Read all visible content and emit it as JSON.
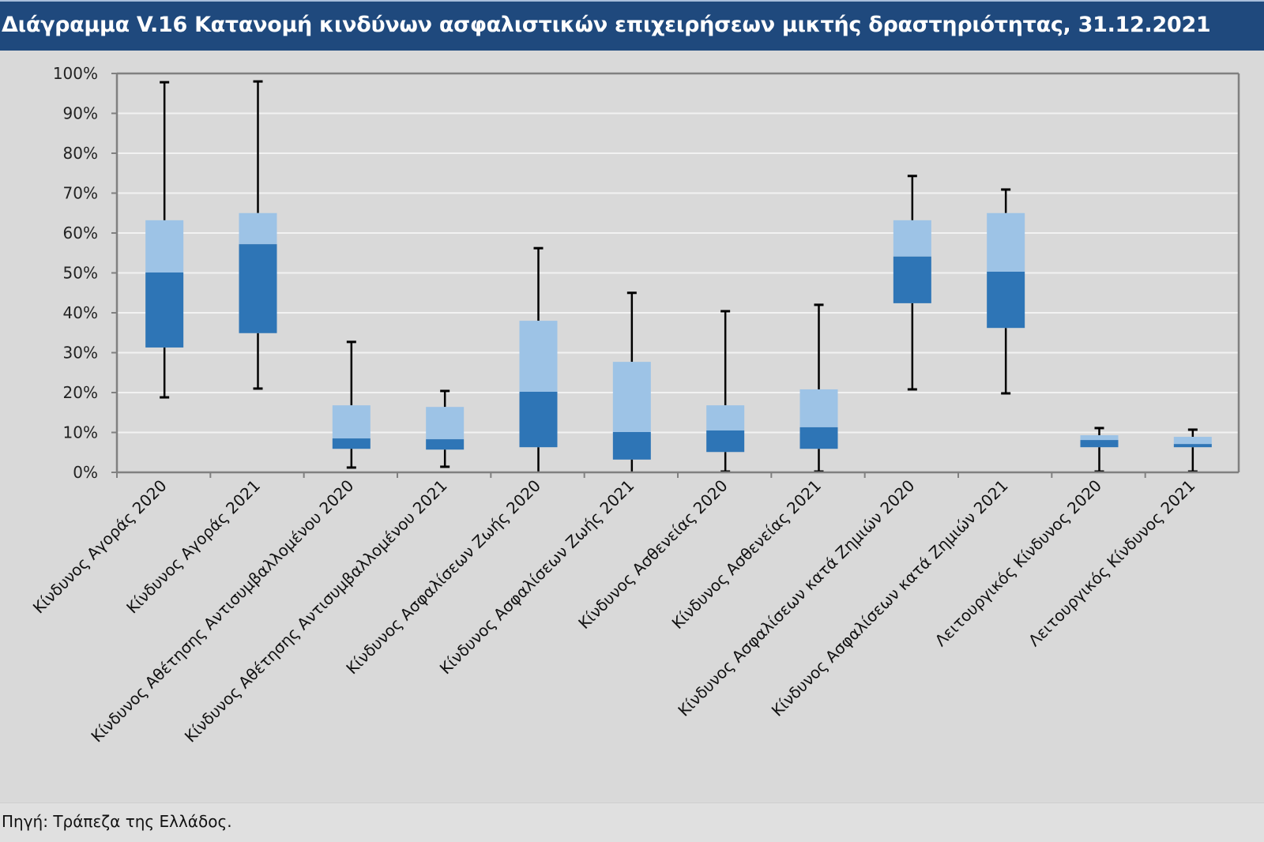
{
  "title": "Διάγραμμα V.16 Κατανομή κινδύνων ασφαλιστικών επιχειρήσεων μικτής δραστηριότητας, 31.12.2021",
  "source": "Πηγή: Τράπεζα της Ελλάδος.",
  "colors": {
    "title_bg": "#1f497d",
    "upper_box": "#9dc3e6",
    "lower_box": "#2e75b6",
    "whisker": "#000000",
    "gridline": "#f2f2f2",
    "axis": "#808080"
  },
  "chart_data": {
    "type": "boxplot",
    "title": "Διάγραμμα V.16 Κατανομή κινδύνων ασφαλιστικών επιχειρήσεων μικτής δραστηριότητας, 31.12.2021",
    "xlabel": "",
    "ylabel": "",
    "ylim": [
      0,
      100
    ],
    "y_unit": "%",
    "y_ticks": [
      "0%",
      "10%",
      "20%",
      "30%",
      "40%",
      "50%",
      "60%",
      "70%",
      "80%",
      "90%",
      "100%"
    ],
    "y_tick_values": [
      0,
      10,
      20,
      30,
      40,
      50,
      60,
      70,
      80,
      90,
      100
    ],
    "grid": true,
    "legend": "none",
    "categories": [
      "Κίνδυνος Αγοράς  2020",
      "Κίνδυνος Αγοράς 2021",
      "Κίνδυνος Αθέτησης Αντισυμβαλλομένου 2020",
      "Κίνδυνος Αθέτησης Αντισυμβαλλομένου 2021",
      "Κίνδυνος Ασφαλίσεων Ζωής 2020",
      "Κίνδυνος Ασφαλίσεων Ζωής 2021",
      "Κίνδυνος Ασθενείας 2020",
      "Κίνδυνος Ασθενείας 2021",
      "Κίνδυνος Ασφαλίσεων κατά Ζημιών 2020",
      "Κίνδυνος Ασφαλίσεων κατά Ζημιών 2021",
      "Λειτουργικός Κίνδυνος 2020",
      "Λειτουργικός Κίνδυνος 2021"
    ],
    "boxes": [
      {
        "min": 18.8,
        "q1": 31.3,
        "median": 50.1,
        "q3": 63.2,
        "max": 97.8
      },
      {
        "min": 21.0,
        "q1": 34.9,
        "median": 57.2,
        "q3": 65.0,
        "max": 98.0
      },
      {
        "min": 1.2,
        "q1": 5.9,
        "median": 8.5,
        "q3": 16.8,
        "max": 32.7
      },
      {
        "min": 1.4,
        "q1": 5.7,
        "median": 8.3,
        "q3": 16.4,
        "max": 20.4
      },
      {
        "min": 0.0,
        "q1": 6.3,
        "median": 20.2,
        "q3": 38.0,
        "max": 56.2
      },
      {
        "min": 0.0,
        "q1": 3.2,
        "median": 10.1,
        "q3": 27.7,
        "max": 45.0
      },
      {
        "min": 0.2,
        "q1": 5.1,
        "median": 10.5,
        "q3": 16.8,
        "max": 40.4
      },
      {
        "min": 0.2,
        "q1": 5.9,
        "median": 11.3,
        "q3": 20.8,
        "max": 42.0
      },
      {
        "min": 20.8,
        "q1": 42.4,
        "median": 54.1,
        "q3": 63.2,
        "max": 74.3
      },
      {
        "min": 19.8,
        "q1": 36.2,
        "median": 50.3,
        "q3": 65.0,
        "max": 70.9
      },
      {
        "min": 0.2,
        "q1": 6.3,
        "median": 8.1,
        "q3": 9.3,
        "max": 11.1
      },
      {
        "min": 0.2,
        "q1": 6.3,
        "median": 7.1,
        "q3": 8.9,
        "max": 10.7
      }
    ]
  }
}
